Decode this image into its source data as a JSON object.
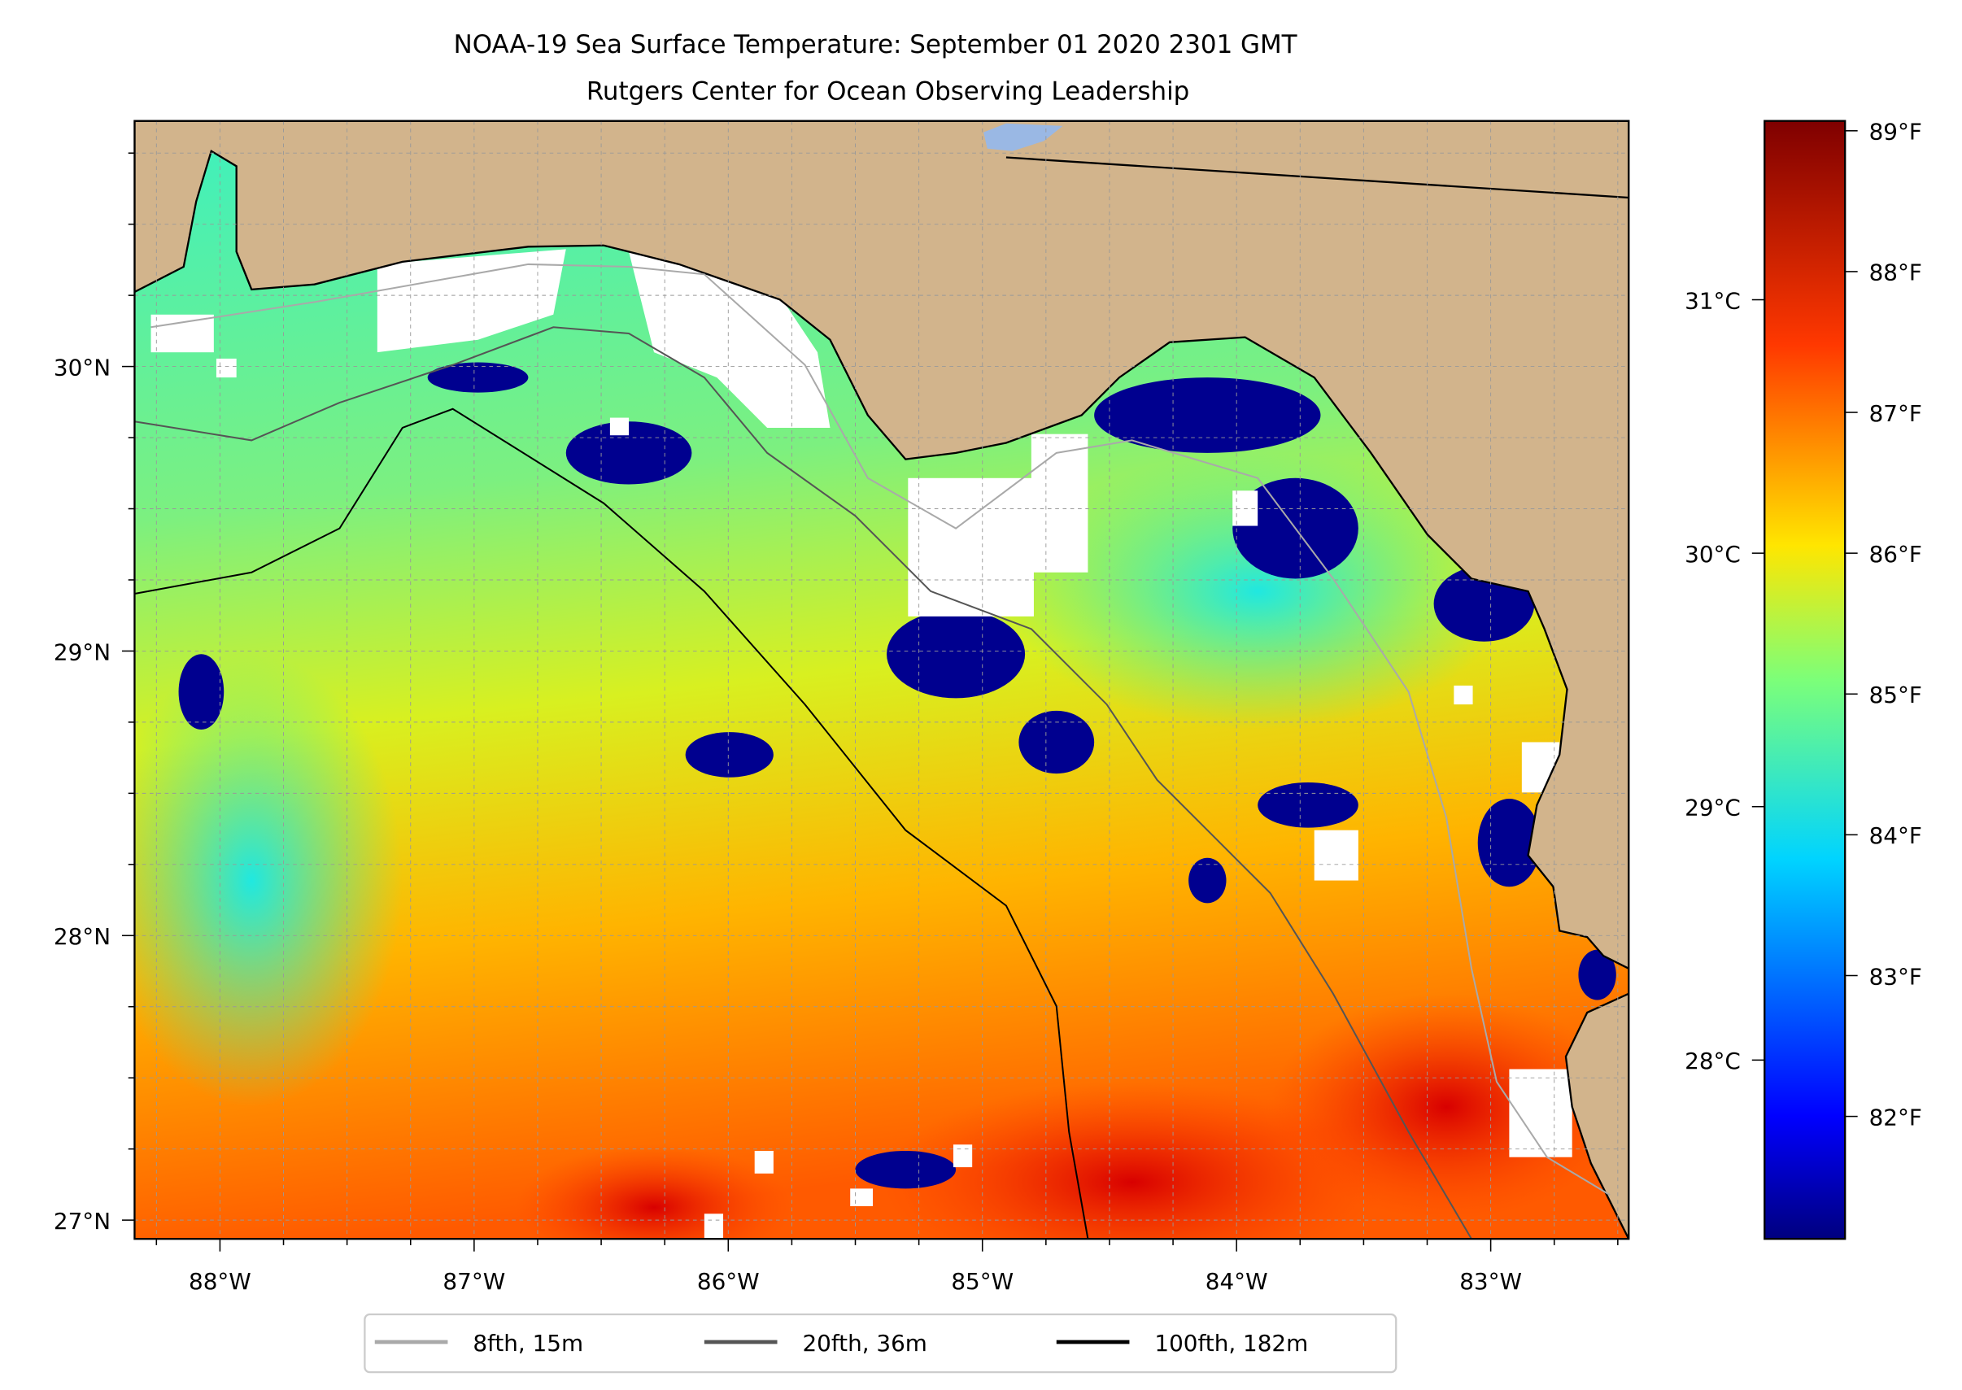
{
  "chart_data": {
    "type": "heatmap",
    "title": "NOAA-19 Sea Surface Temperature: September 01 2020 2301 GMT",
    "subtitle": "Rutgers Center for Ocean Observing Leadership",
    "xlim": [
      -88.336,
      -82.457
    ],
    "ylim": [
      26.934,
      30.863
    ],
    "x_ticks": [
      {
        "value": -88,
        "label": "88°W"
      },
      {
        "value": -87,
        "label": "87°W"
      },
      {
        "value": -86,
        "label": "86°W"
      },
      {
        "value": -85,
        "label": "85°W"
      },
      {
        "value": -84,
        "label": "84°W"
      },
      {
        "value": -83,
        "label": "83°W"
      }
    ],
    "y_ticks": [
      {
        "value": 27,
        "label": "27°N"
      },
      {
        "value": 28,
        "label": "28°N"
      },
      {
        "value": 29,
        "label": "29°N"
      },
      {
        "value": 30,
        "label": "30°N"
      }
    ],
    "grid": true,
    "colorbar": {
      "range_f": [
        81.13,
        89.07
      ],
      "colormap": "jet",
      "ticks_f": [
        {
          "value": 82,
          "label": "82°F"
        },
        {
          "value": 83,
          "label": "83°F"
        },
        {
          "value": 84,
          "label": "84°F"
        },
        {
          "value": 85,
          "label": "85°F"
        },
        {
          "value": 86,
          "label": "86°F"
        },
        {
          "value": 87,
          "label": "87°F"
        },
        {
          "value": 88,
          "label": "88°F"
        },
        {
          "value": 89,
          "label": "89°F"
        }
      ],
      "ticks_c": [
        {
          "value": 28,
          "label": "28°C"
        },
        {
          "value": 29,
          "label": "29°C"
        },
        {
          "value": 30,
          "label": "30°C"
        },
        {
          "value": 31,
          "label": "31°C"
        }
      ]
    },
    "legend": {
      "placement": "bottom-center",
      "entries": [
        {
          "label": "8fth, 15m",
          "color": "#a9a9a9"
        },
        {
          "label": "20fth, 36m",
          "color": "#555555"
        },
        {
          "label": "100fth, 182m",
          "color": "#000000"
        }
      ]
    },
    "land_color": "#d2b48c"
  }
}
